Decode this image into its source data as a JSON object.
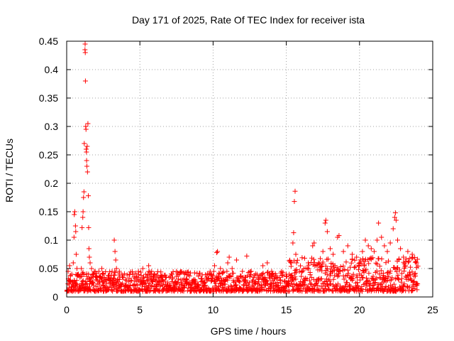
{
  "chart_data": {
    "type": "scatter",
    "title": "Day 171 of 2025, Rate Of TEC Index for receiver ista",
    "xlabel": "GPS time / hours",
    "ylabel": "ROTI / TECUs",
    "xlim": [
      0,
      25
    ],
    "ylim": [
      0,
      0.45
    ],
    "xticks": [
      0,
      5,
      10,
      15,
      20,
      25
    ],
    "xtick_labels": [
      "0",
      "5",
      "10",
      "15",
      "20",
      "25"
    ],
    "yticks": [
      0,
      0.05,
      0.1,
      0.15,
      0.2,
      0.25,
      0.3,
      0.35,
      0.4,
      0.45
    ],
    "ytick_labels": [
      "0",
      "0.05",
      "0.1",
      "0.15",
      "0.2",
      "0.25",
      "0.3",
      "0.35",
      "0.4",
      "0.45"
    ],
    "grid": true,
    "marker": "+",
    "marker_color": "#ff0000",
    "series": [
      {
        "name": "ROTI",
        "points": [
          [
            0.1,
            0.045
          ],
          [
            0.2,
            0.055
          ],
          [
            0.35,
            0.04
          ],
          [
            0.45,
            0.06
          ],
          [
            0.5,
            0.105
          ],
          [
            0.52,
            0.145
          ],
          [
            0.55,
            0.15
          ],
          [
            0.6,
            0.125
          ],
          [
            0.62,
            0.115
          ],
          [
            0.65,
            0.075
          ],
          [
            0.7,
            0.05
          ],
          [
            0.8,
            0.04
          ],
          [
            0.9,
            0.035
          ],
          [
            1.0,
            0.05
          ],
          [
            1.05,
            0.122
          ],
          [
            1.1,
            0.14
          ],
          [
            1.12,
            0.15
          ],
          [
            1.15,
            0.175
          ],
          [
            1.18,
            0.185
          ],
          [
            1.2,
            0.27
          ],
          [
            1.25,
            0.435
          ],
          [
            1.26,
            0.445
          ],
          [
            1.27,
            0.43
          ],
          [
            1.28,
            0.38
          ],
          [
            1.3,
            0.3
          ],
          [
            1.32,
            0.295
          ],
          [
            1.33,
            0.26
          ],
          [
            1.35,
            0.255
          ],
          [
            1.36,
            0.24
          ],
          [
            1.38,
            0.23
          ],
          [
            1.4,
            0.265
          ],
          [
            1.42,
            0.22
          ],
          [
            1.45,
            0.305
          ],
          [
            1.48,
            0.178
          ],
          [
            1.5,
            0.122
          ],
          [
            1.52,
            0.085
          ],
          [
            1.55,
            0.07
          ],
          [
            1.6,
            0.06
          ],
          [
            1.7,
            0.05
          ],
          [
            1.8,
            0.04
          ],
          [
            2.0,
            0.035
          ],
          [
            2.2,
            0.045
          ],
          [
            2.4,
            0.05
          ],
          [
            2.5,
            0.04
          ],
          [
            2.7,
            0.03
          ],
          [
            2.9,
            0.035
          ],
          [
            3.1,
            0.045
          ],
          [
            3.25,
            0.1
          ],
          [
            3.3,
            0.08
          ],
          [
            3.35,
            0.065
          ],
          [
            3.4,
            0.05
          ],
          [
            3.6,
            0.045
          ],
          [
            3.8,
            0.035
          ],
          [
            4.0,
            0.03
          ],
          [
            4.3,
            0.04
          ],
          [
            4.6,
            0.035
          ],
          [
            4.9,
            0.045
          ],
          [
            5.2,
            0.05
          ],
          [
            5.4,
            0.04
          ],
          [
            5.6,
            0.055
          ],
          [
            5.8,
            0.045
          ],
          [
            6.1,
            0.035
          ],
          [
            6.5,
            0.03
          ],
          [
            6.8,
            0.035
          ],
          [
            7.2,
            0.04
          ],
          [
            7.5,
            0.045
          ],
          [
            7.8,
            0.03
          ],
          [
            8.2,
            0.025
          ],
          [
            8.7,
            0.025
          ],
          [
            9.0,
            0.02
          ],
          [
            9.4,
            0.025
          ],
          [
            9.8,
            0.045
          ],
          [
            10.1,
            0.055
          ],
          [
            10.25,
            0.078
          ],
          [
            10.3,
            0.08
          ],
          [
            10.5,
            0.05
          ],
          [
            10.7,
            0.045
          ],
          [
            11.0,
            0.06
          ],
          [
            11.1,
            0.07
          ],
          [
            11.3,
            0.05
          ],
          [
            11.6,
            0.065
          ],
          [
            12.0,
            0.045
          ],
          [
            12.3,
            0.072
          ],
          [
            12.6,
            0.045
          ],
          [
            13.0,
            0.04
          ],
          [
            13.4,
            0.055
          ],
          [
            13.7,
            0.06
          ],
          [
            14.0,
            0.045
          ],
          [
            14.3,
            0.035
          ],
          [
            14.6,
            0.03
          ],
          [
            15.0,
            0.025
          ],
          [
            15.2,
            0.04
          ],
          [
            15.35,
            0.06
          ],
          [
            15.45,
            0.095
          ],
          [
            15.5,
            0.113
          ],
          [
            15.55,
            0.168
          ],
          [
            15.6,
            0.186
          ],
          [
            15.65,
            0.075
          ],
          [
            15.7,
            0.06
          ],
          [
            15.9,
            0.045
          ],
          [
            16.2,
            0.05
          ],
          [
            16.5,
            0.06
          ],
          [
            16.8,
            0.09
          ],
          [
            16.9,
            0.095
          ],
          [
            17.2,
            0.06
          ],
          [
            17.5,
            0.08
          ],
          [
            17.65,
            0.13
          ],
          [
            17.7,
            0.135
          ],
          [
            17.8,
            0.115
          ],
          [
            18.0,
            0.085
          ],
          [
            18.2,
            0.075
          ],
          [
            18.5,
            0.105
          ],
          [
            18.6,
            0.108
          ],
          [
            18.9,
            0.08
          ],
          [
            19.2,
            0.09
          ],
          [
            19.5,
            0.075
          ],
          [
            19.8,
            0.07
          ],
          [
            20.0,
            0.06
          ],
          [
            20.2,
            0.08
          ],
          [
            20.4,
            0.1
          ],
          [
            20.6,
            0.09
          ],
          [
            20.8,
            0.085
          ],
          [
            21.0,
            0.08
          ],
          [
            21.2,
            0.1
          ],
          [
            21.3,
            0.13
          ],
          [
            21.5,
            0.105
          ],
          [
            21.7,
            0.09
          ],
          [
            21.9,
            0.08
          ],
          [
            22.1,
            0.095
          ],
          [
            22.3,
            0.12
          ],
          [
            22.4,
            0.14
          ],
          [
            22.45,
            0.148
          ],
          [
            22.5,
            0.135
          ],
          [
            22.6,
            0.1
          ],
          [
            22.8,
            0.085
          ],
          [
            23.0,
            0.07
          ],
          [
            23.3,
            0.08
          ],
          [
            23.6,
            0.075
          ],
          [
            23.9,
            0.06
          ]
        ],
        "baseline_band": [
          0.01,
          0.045
        ]
      }
    ]
  }
}
